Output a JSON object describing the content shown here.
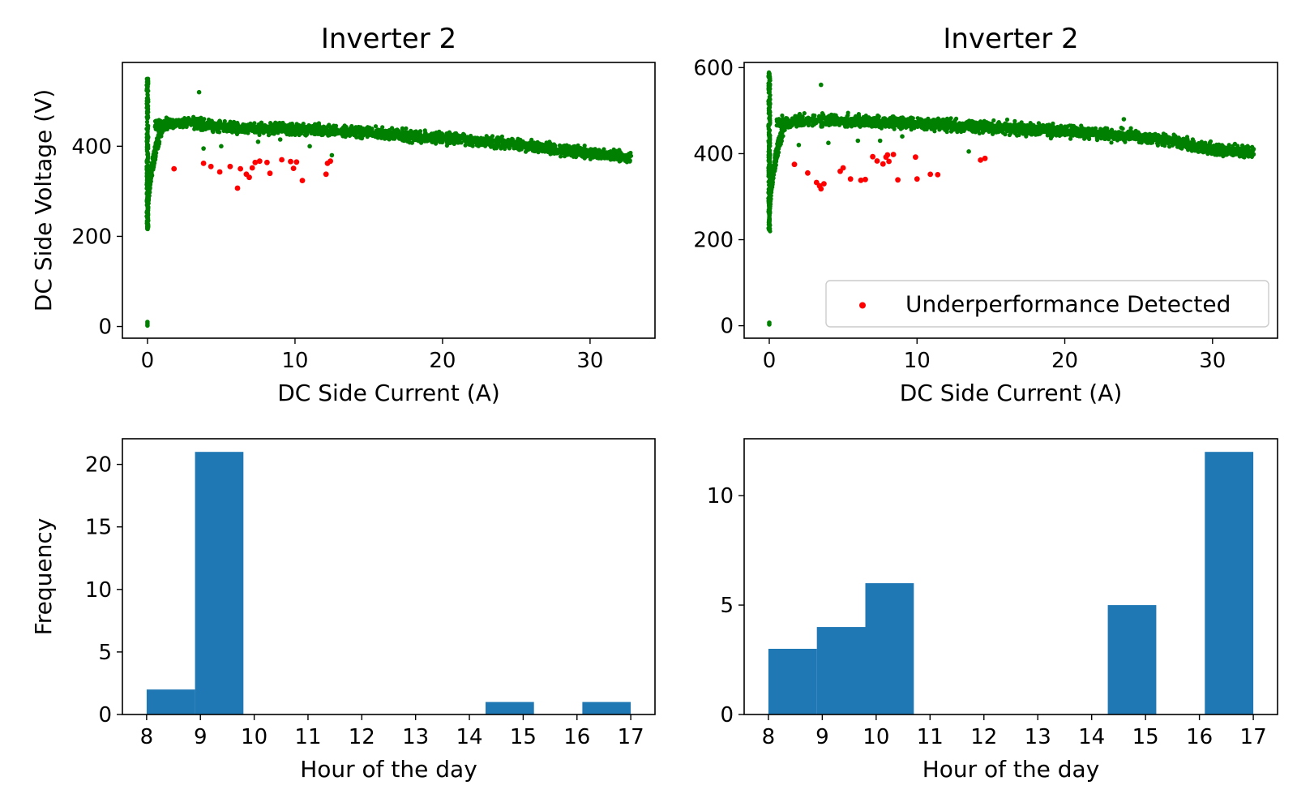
{
  "colors": {
    "normal_points": "#008000",
    "anomaly_points": "#ff0000",
    "bars": "#1f77b4"
  },
  "chart_data": [
    {
      "type": "scatter",
      "title": "Inverter 2",
      "xlabel": "DC Side Current (A)",
      "ylabel": "DC Side Voltage (V)",
      "xlim": [
        -1.7,
        34.4
      ],
      "ylim": [
        -26,
        586
      ],
      "xticks": [
        0,
        10,
        20,
        30
      ],
      "yticks": [
        0,
        200,
        400
      ],
      "legend": null,
      "series": [
        {
          "role": "normal",
          "color": "#008000",
          "band": [
            [
              0.5,
              448
            ],
            [
              3,
              452
            ],
            [
              6,
              440
            ],
            [
              10,
              438
            ],
            [
              15,
              430
            ],
            [
              20,
              418
            ],
            [
              25,
              405
            ],
            [
              30,
              385
            ],
            [
              32.8,
              374
            ]
          ],
          "band_spread": 18,
          "vertical_cluster": {
            "x": 0,
            "y_min": 215,
            "y_max": 550
          },
          "outliers": [
            [
              0,
              2
            ],
            [
              0,
              6
            ],
            [
              0,
              10
            ],
            [
              3.5,
              520
            ],
            [
              7.5,
              410
            ],
            [
              9,
              415
            ],
            [
              12.5,
              380
            ],
            [
              3.8,
              395
            ],
            [
              5,
              400
            ],
            [
              11,
              400
            ]
          ]
        },
        {
          "role": "anomaly",
          "color": "#ff0000",
          "points": [
            [
              1.8,
              350
            ],
            [
              3.8,
              362
            ],
            [
              4.3,
              355
            ],
            [
              4.9,
              343
            ],
            [
              5.6,
              355
            ],
            [
              6.1,
              307
            ],
            [
              6.3,
              350
            ],
            [
              6.7,
              338
            ],
            [
              6.9,
              331
            ],
            [
              7.1,
              352
            ],
            [
              7.3,
              364
            ],
            [
              7.6,
              367
            ],
            [
              8.1,
              364
            ],
            [
              8.3,
              340
            ],
            [
              9.1,
              370
            ],
            [
              9.7,
              366
            ],
            [
              9.9,
              351
            ],
            [
              10.1,
              365
            ],
            [
              10.5,
              324
            ],
            [
              12.1,
              338
            ],
            [
              12.2,
              362
            ],
            [
              12.4,
              367
            ]
          ]
        }
      ]
    },
    {
      "type": "scatter",
      "title": "Inverter 2",
      "xlabel": "DC Side Current (A)",
      "ylabel": "",
      "xlim": [
        -1.7,
        34.4
      ],
      "ylim": [
        -29,
        612
      ],
      "xticks": [
        0,
        10,
        20,
        30
      ],
      "yticks": [
        0,
        200,
        400,
        600
      ],
      "legend": {
        "label": "Underperformance Detected",
        "loc": "lower right"
      },
      "series": [
        {
          "role": "normal",
          "color": "#008000",
          "band": [
            [
              0.5,
              470
            ],
            [
              3,
              478
            ],
            [
              6,
              475
            ],
            [
              10,
              470
            ],
            [
              15,
              462
            ],
            [
              20,
              452
            ],
            [
              25,
              440
            ],
            [
              28,
              425
            ],
            [
              30,
              410
            ],
            [
              32.8,
              404
            ]
          ],
          "band_spread": 20,
          "vertical_cluster": {
            "x": 0,
            "y_min": 218,
            "y_max": 590
          },
          "outliers": [
            [
              0,
              3
            ],
            [
              0,
              7
            ],
            [
              3.5,
              560
            ],
            [
              7.5,
              430
            ],
            [
              2,
              420
            ],
            [
              4,
              425
            ],
            [
              13.5,
              405
            ],
            [
              6,
              430
            ],
            [
              9,
              440
            ],
            [
              24,
              480
            ]
          ]
        },
        {
          "role": "anomaly",
          "color": "#ff0000",
          "points": [
            [
              1.7,
              375
            ],
            [
              2.6,
              355
            ],
            [
              3.2,
              333
            ],
            [
              3.4,
              325
            ],
            [
              3.5,
              318
            ],
            [
              3.7,
              330
            ],
            [
              4.8,
              359
            ],
            [
              5.0,
              367
            ],
            [
              5.5,
              341
            ],
            [
              6.2,
              338
            ],
            [
              6.5,
              340
            ],
            [
              7.0,
              393
            ],
            [
              7.3,
              383
            ],
            [
              7.9,
              392
            ],
            [
              8.0,
              397
            ],
            [
              8.1,
              382
            ],
            [
              8.4,
              398
            ],
            [
              8.7,
              339
            ],
            [
              9.9,
              392
            ],
            [
              10.0,
              341
            ],
            [
              10.9,
              352
            ],
            [
              11.4,
              351
            ],
            [
              14.3,
              385
            ],
            [
              14.6,
              389
            ],
            [
              7.7,
              376
            ]
          ]
        }
      ]
    },
    {
      "type": "bar",
      "title": "",
      "xlabel": "Hour of the day",
      "ylabel": "Frequency",
      "xlim": [
        7.55,
        17.45
      ],
      "ylim": [
        0,
        22.05
      ],
      "xticks": [
        8,
        9,
        10,
        11,
        12,
        13,
        14,
        15,
        16,
        17
      ],
      "yticks": [
        0,
        5,
        10,
        15,
        20
      ],
      "bin_edges": [
        8,
        8.9,
        9.8,
        10.7,
        11.6,
        12.5,
        13.4,
        14.3,
        15.2,
        16.1,
        17
      ],
      "values": [
        2,
        21,
        0,
        0,
        0,
        0,
        0,
        1,
        0,
        1
      ]
    },
    {
      "type": "bar",
      "title": "",
      "xlabel": "Hour of the day",
      "ylabel": "",
      "xlim": [
        7.55,
        17.45
      ],
      "ylim": [
        0,
        12.6
      ],
      "xticks": [
        8,
        9,
        10,
        11,
        12,
        13,
        14,
        15,
        16,
        17
      ],
      "yticks": [
        0,
        5,
        10
      ],
      "bin_edges": [
        8,
        8.9,
        9.8,
        10.7,
        11.6,
        12.5,
        13.4,
        14.3,
        15.2,
        16.1,
        17
      ],
      "values": [
        3,
        4,
        6,
        0,
        0,
        0,
        0,
        5,
        0,
        12
      ]
    }
  ]
}
